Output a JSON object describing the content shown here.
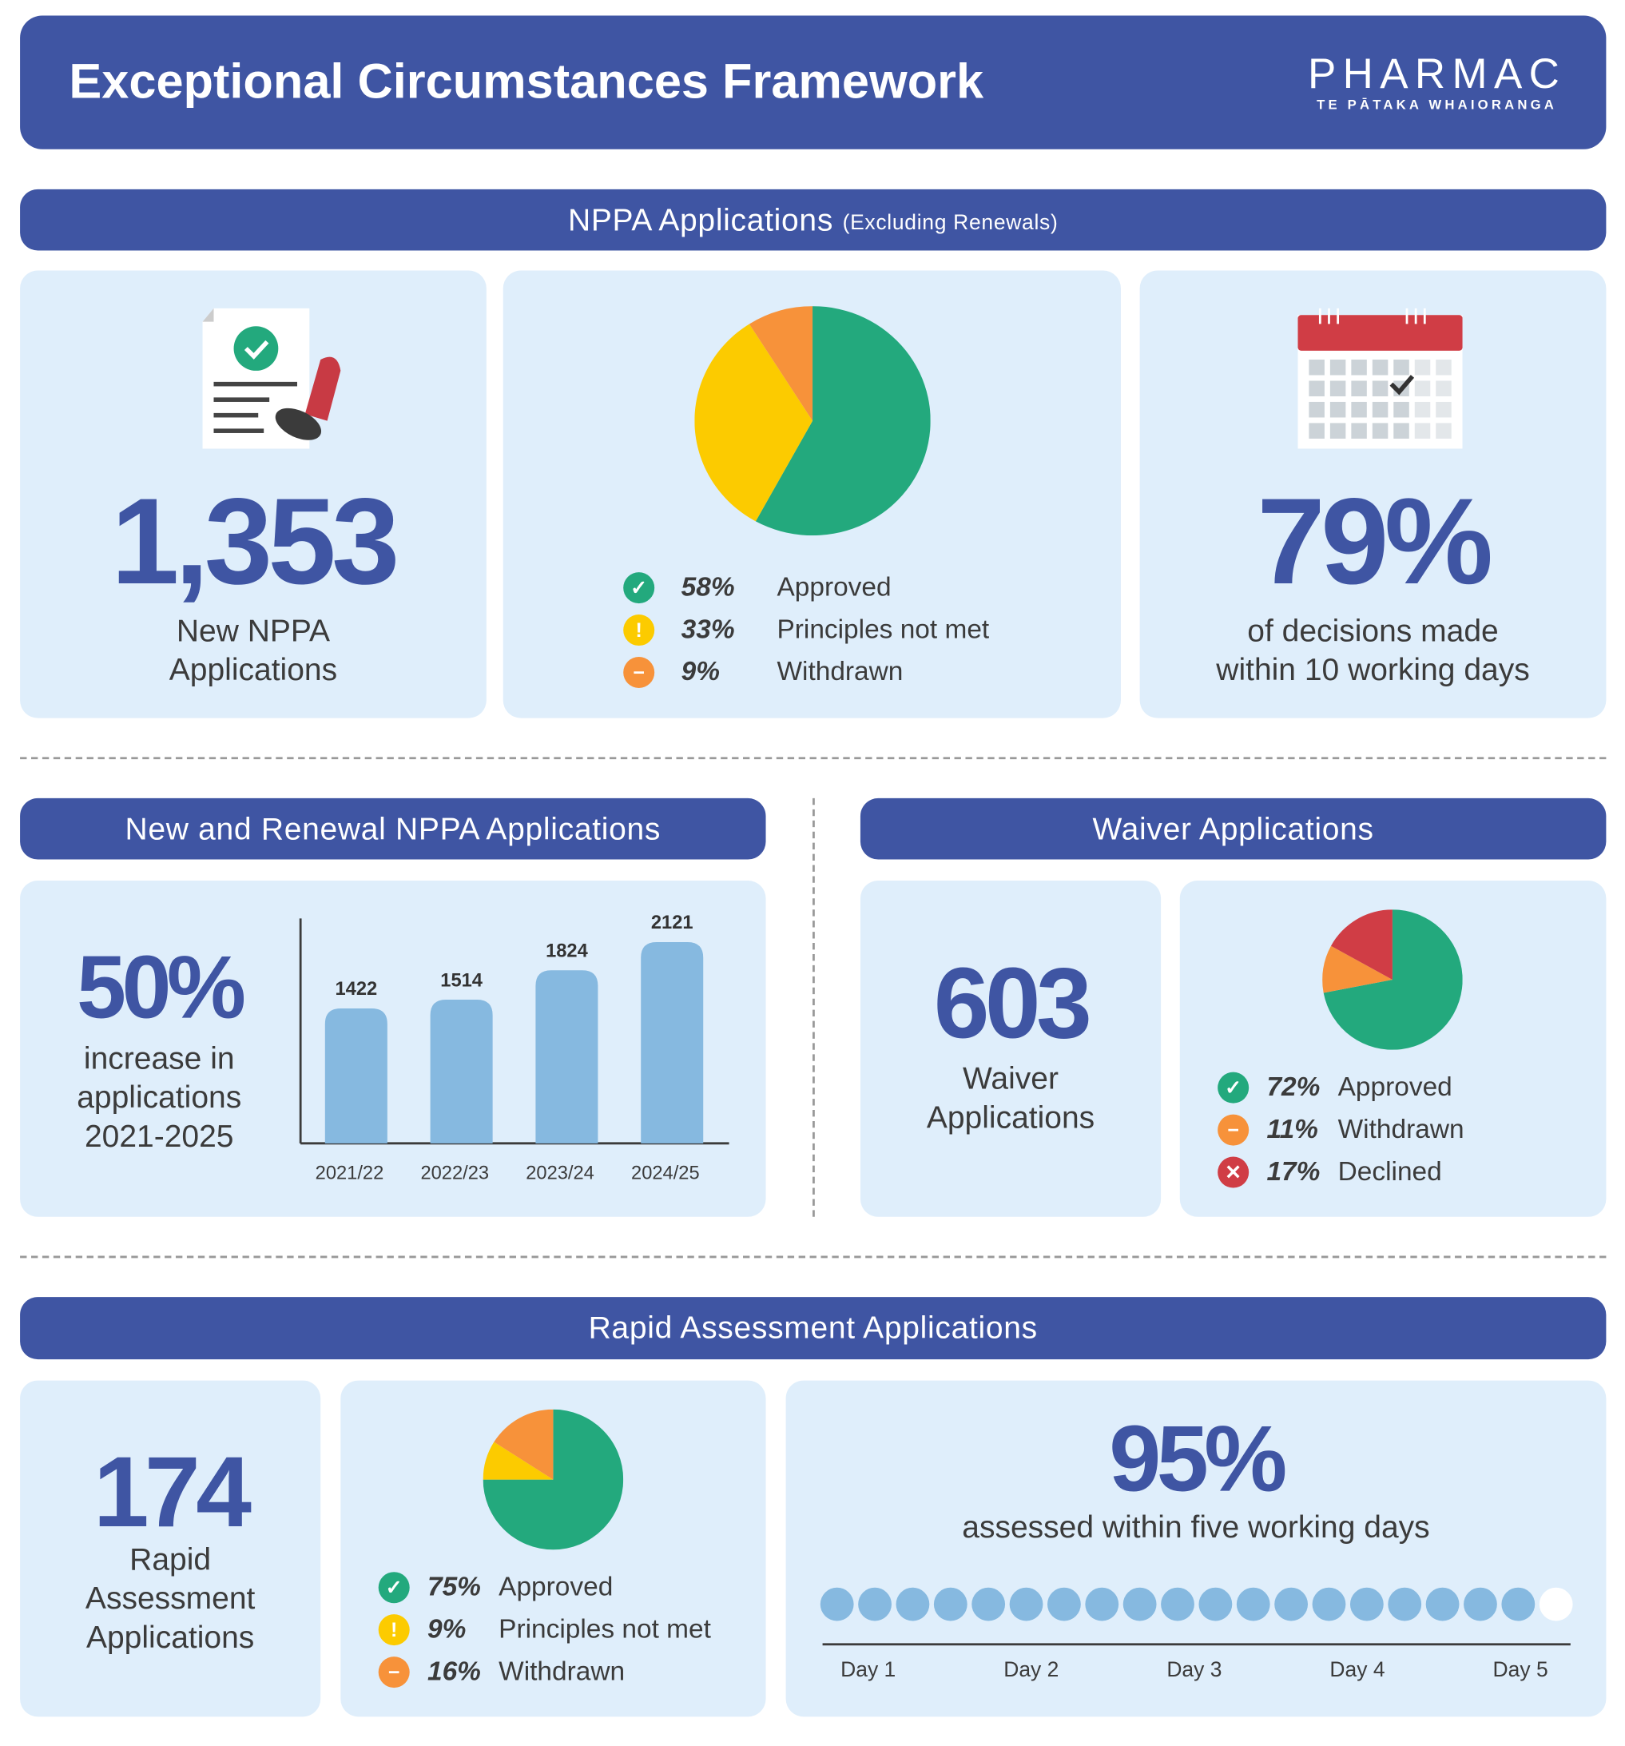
{
  "header": {
    "title": "Exceptional Circumstances Framework",
    "logo": {
      "name": "PHARMAC",
      "tagline": "TE PĀTAKA WHAIORANGA"
    }
  },
  "colors": {
    "navy": "#3f55a3",
    "card": "#dfeefb",
    "green": "#23a97d",
    "yellow": "#fccb00",
    "orange": "#f7923a",
    "red": "#d03d45",
    "bar": "#86b9e0"
  },
  "nppa": {
    "title": "NPPA Applications",
    "subtitle": "(Excluding Renewals)",
    "count": "1,353",
    "count_label_1": "New NPPA",
    "count_label_2": "Applications",
    "icon": "document-stamp-icon",
    "pie": [
      {
        "pct": 58,
        "label": "58%",
        "name": "Approved",
        "color": "#23a97d",
        "icon": "check"
      },
      {
        "pct": 33,
        "label": "33%",
        "name": "Principles not met",
        "color": "#fccb00",
        "icon": "exclamation"
      },
      {
        "pct": 9,
        "label": "9%",
        "name": "Withdrawn",
        "color": "#f7923a",
        "icon": "minus"
      }
    ],
    "timely": "79%",
    "timely_label_1": "of decisions made",
    "timely_label_2": "within 10 working days",
    "timely_icon": "calendar-check-icon"
  },
  "renewal": {
    "title": "New and Renewal NPPA Applications",
    "increase": "50%",
    "increase_label_1": "increase in",
    "increase_label_2": "applications",
    "increase_label_3": "2021-2025"
  },
  "chart_data": {
    "type": "bar",
    "categories": [
      "2021/22",
      "2022/23",
      "2023/24",
      "2024/25"
    ],
    "values": [
      1422,
      1514,
      1824,
      2121
    ],
    "ylim": [
      0,
      2370
    ],
    "grid": false,
    "title": "",
    "xlabel": "",
    "ylabel": ""
  },
  "waiver": {
    "title": "Waiver Applications",
    "count": "603",
    "count_label_1": "Waiver",
    "count_label_2": "Applications",
    "pie": [
      {
        "pct": 72,
        "label": "72%",
        "name": "Approved",
        "color": "#23a97d",
        "icon": "check"
      },
      {
        "pct": 11,
        "label": "11%",
        "name": "Withdrawn",
        "color": "#f7923a",
        "icon": "minus"
      },
      {
        "pct": 17,
        "label": "17%",
        "name": "Declined",
        "color": "#d03d45",
        "icon": "cross"
      }
    ]
  },
  "rapid": {
    "title": "Rapid Assessment Applications",
    "count": "174",
    "count_label_1": "Rapid",
    "count_label_2": "Assessment",
    "count_label_3": "Applications",
    "pie": [
      {
        "pct": 75,
        "label": "75%",
        "name": "Approved",
        "color": "#23a97d",
        "icon": "check"
      },
      {
        "pct": 9,
        "label": "9%",
        "name": "Principles not met",
        "color": "#fccb00",
        "icon": "exclamation"
      },
      {
        "pct": 16,
        "label": "16%",
        "name": "Withdrawn",
        "color": "#f7923a",
        "icon": "minus"
      }
    ],
    "timely": "95%",
    "timely_label": "assessed within five working days",
    "dots_total": 20,
    "dots_filled": 19,
    "days": [
      "Day 1",
      "Day 2",
      "Day 3",
      "Day 4",
      "Day 5"
    ]
  }
}
